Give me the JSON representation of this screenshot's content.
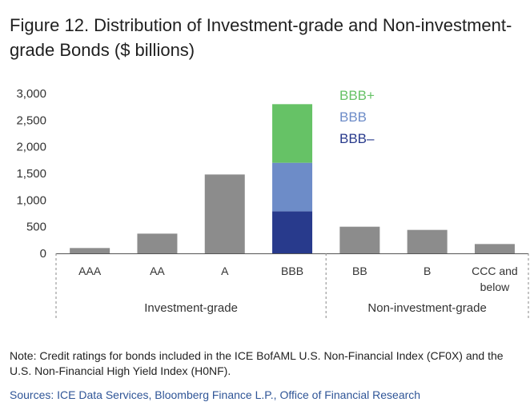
{
  "title": "Figure 12. Distribution of Investment-grade and Non-investment-grade Bonds ($ billions)",
  "note": "Note: Credit ratings for bonds included in the ICE BofAML U.S. Non-Financial Index (CF0X) and the U.S. Non-Financial High Yield Index (H0NF).",
  "sources": "Sources: ICE Data Services, Bloomberg Finance L.P., Office of Financial Research",
  "colors": {
    "bar": "#8c8c8c",
    "bbb_plus": "#66c266",
    "bbb": "#6d8cc8",
    "bbb_minus": "#283a8c",
    "sources_text": "#2f5597"
  },
  "chart_data": {
    "type": "bar",
    "ylim": [
      0,
      3000
    ],
    "yticks": [
      0,
      500,
      1000,
      1500,
      2000,
      2500,
      3000
    ],
    "ytick_labels": [
      "0",
      "500",
      "1,000",
      "1,500",
      "2,000",
      "2,500",
      "3,000"
    ],
    "categories": [
      "AAA",
      "AA",
      "A",
      "BBB",
      "BB",
      "B",
      "CCC and below"
    ],
    "values": [
      100,
      370,
      1480,
      2800,
      500,
      440,
      175
    ],
    "bbb_breakdown": [
      {
        "name": "BBB+",
        "value": 1100
      },
      {
        "name": "BBB",
        "value": 910
      },
      {
        "name": "BBB–",
        "value": 790
      }
    ],
    "groups": [
      {
        "label": "Investment-grade",
        "categories": [
          "AAA",
          "AA",
          "A",
          "BBB"
        ]
      },
      {
        "label": "Non-investment-grade",
        "categories": [
          "BB",
          "B",
          "CCC and below"
        ]
      }
    ],
    "grid": false
  }
}
